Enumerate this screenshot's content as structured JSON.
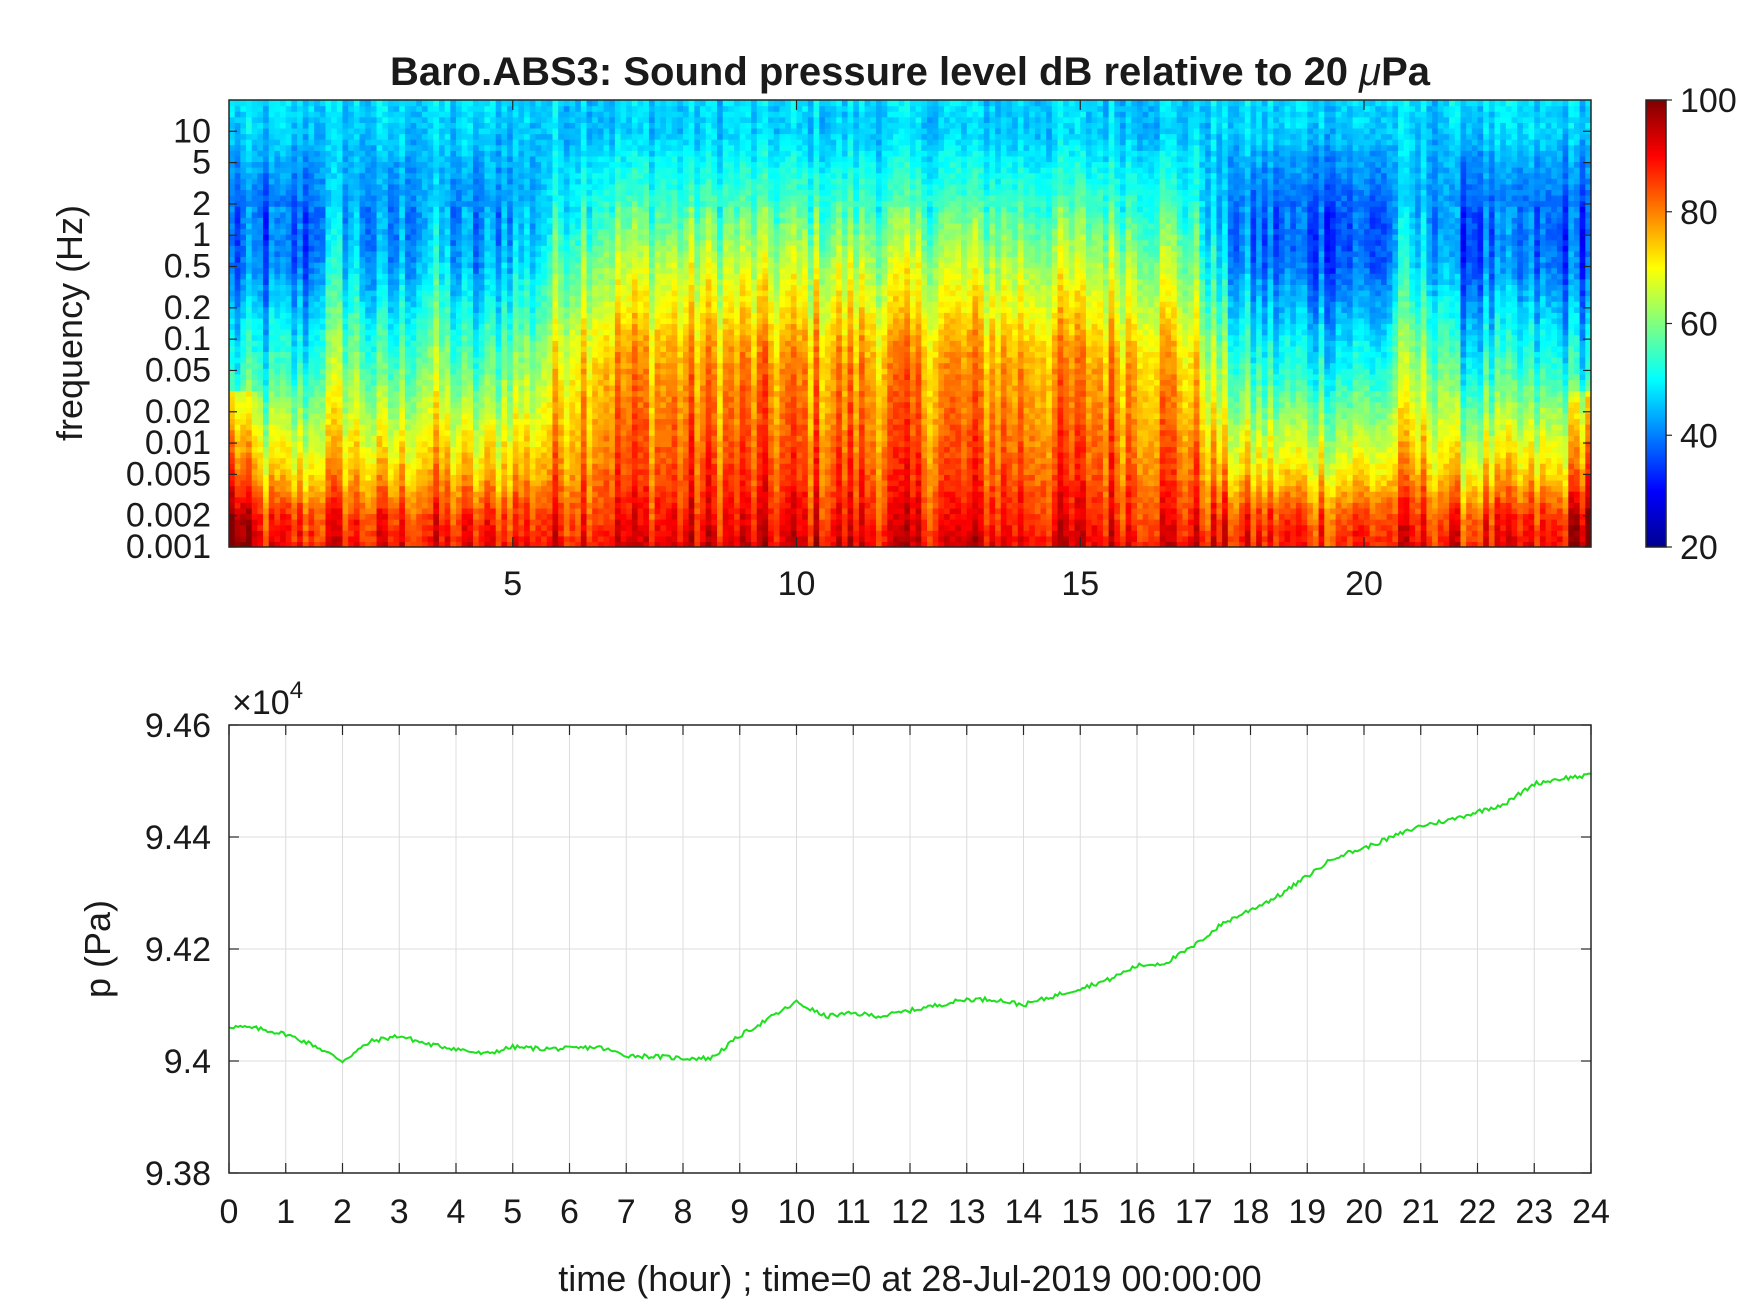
{
  "chart_data": [
    {
      "type": "heatmap",
      "title": "Baro.ABS3: Sound pressure level dB relative to 20 μPa",
      "title_main": "Baro.ABS3: Sound pressure level dB relative to 20 ",
      "title_greek": "μ",
      "title_end": "Pa",
      "ylabel": "frequency (Hz)",
      "xlabel": "",
      "y_scale": "log",
      "xlim": [
        0,
        24
      ],
      "ylim": [
        0.001,
        20
      ],
      "x_ticks": [
        5,
        10,
        15,
        20
      ],
      "x_tick_labels": [
        "5",
        "10",
        "15",
        "20"
      ],
      "y_ticks": [
        0.001,
        0.002,
        0.005,
        0.01,
        0.02,
        0.05,
        0.1,
        0.2,
        0.5,
        1,
        2,
        5,
        10
      ],
      "y_tick_labels": [
        "0.001",
        "0.002",
        "0.005",
        "0.01",
        "0.02",
        "0.05",
        "0.1",
        "0.2",
        "0.5",
        "1",
        "2",
        "5",
        "10"
      ],
      "colormap": "jet",
      "clim": [
        20,
        100
      ],
      "colorbar_ticks": [
        20,
        40,
        60,
        80,
        100
      ],
      "colorbar_tick_labels": [
        "20",
        "40",
        "60",
        "80",
        "100"
      ],
      "high_activity_interval_hours": [
        5.5,
        17.3
      ],
      "level_profile_dB_by_frequency": {
        "frequency_hz": [
          0.001,
          0.002,
          0.005,
          0.01,
          0.02,
          0.05,
          0.1,
          0.2,
          0.5,
          1,
          2,
          5,
          10,
          20
        ],
        "active_period_dB": [
          92,
          88,
          84,
          82,
          80,
          78,
          75,
          70,
          65,
          60,
          55,
          50,
          46,
          47
        ],
        "quiet_period_dB": [
          88,
          84,
          72,
          66,
          60,
          52,
          48,
          44,
          38,
          37,
          38,
          42,
          46,
          47
        ]
      }
    },
    {
      "type": "line",
      "title": "",
      "xlabel": "time (hour) ; time=0 at 28-Jul-2019 00:00:00",
      "ylabel": "p (Pa)",
      "y_exponent_label": "×10",
      "y_exponent_power": "4",
      "xlim": [
        0,
        24
      ],
      "ylim": [
        9.38,
        9.46
      ],
      "y_multiplier": 10000,
      "grid": true,
      "line_color": "#1ee01e",
      "x_ticks": [
        0,
        1,
        2,
        3,
        4,
        5,
        6,
        7,
        8,
        9,
        10,
        11,
        12,
        13,
        14,
        15,
        16,
        17,
        18,
        19,
        20,
        21,
        22,
        23,
        24
      ],
      "x_tick_labels": [
        "0",
        "1",
        "2",
        "3",
        "4",
        "5",
        "6",
        "7",
        "8",
        "9",
        "10",
        "11",
        "12",
        "13",
        "14",
        "15",
        "16",
        "17",
        "18",
        "19",
        "20",
        "21",
        "22",
        "23",
        "24"
      ],
      "y_ticks": [
        9.38,
        9.4,
        9.42,
        9.44,
        9.46
      ],
      "y_tick_labels": [
        "9.38",
        "9.4",
        "9.42",
        "9.44",
        "9.46"
      ],
      "series": [
        {
          "x": [
            0,
            0.5,
            1,
            1.5,
            2,
            2.5,
            3,
            3.5,
            4,
            4.5,
            5,
            5.5,
            6,
            6.5,
            7,
            7.5,
            8,
            8.5,
            9,
            9.5,
            10,
            10.5,
            11,
            11.5,
            12,
            12.5,
            13,
            13.5,
            14,
            14.5,
            15,
            15.5,
            16,
            16.5,
            17,
            17.5,
            18,
            18.5,
            19,
            19.5,
            20,
            20.5,
            21,
            21.5,
            22,
            22.5,
            23,
            23.5,
            24
          ],
          "y": [
            9.4062,
            9.4058,
            9.4048,
            9.4028,
            9.4,
            9.4035,
            9.4045,
            9.403,
            9.4022,
            9.4012,
            9.4025,
            9.4022,
            9.4022,
            9.4025,
            9.401,
            9.4008,
            9.4005,
            9.4005,
            9.4045,
            9.4075,
            9.4105,
            9.408,
            9.4085,
            9.408,
            9.409,
            9.41,
            9.411,
            9.411,
            9.41,
            9.4115,
            9.413,
            9.4145,
            9.417,
            9.4175,
            9.4205,
            9.4245,
            9.427,
            9.4295,
            9.433,
            9.4365,
            9.438,
            9.44,
            9.442,
            9.443,
            9.4445,
            9.446,
            9.4495,
            9.4505,
            9.451
          ]
        }
      ]
    }
  ]
}
